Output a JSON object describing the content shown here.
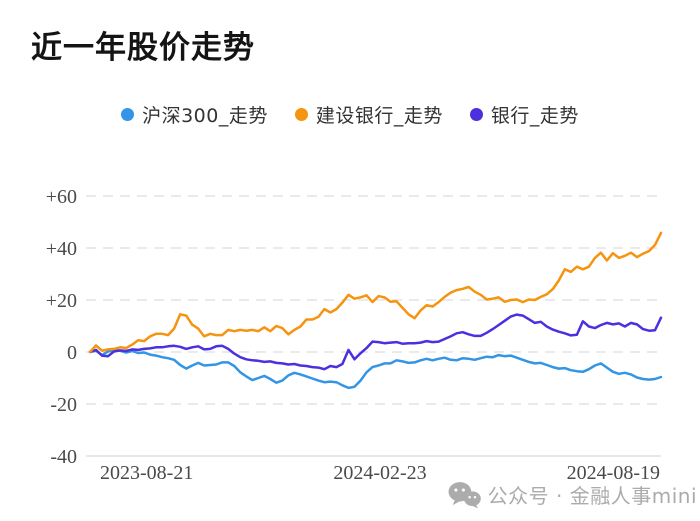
{
  "header": {
    "title": "近一年股价走势"
  },
  "watermark": {
    "icon": "wechat-icon",
    "text": "公众号 · 金融人事mini"
  },
  "theme": {
    "background": "#FFFFFF",
    "grid_line": "#DDDDDD",
    "axis_line": "#DBDBDB",
    "tick_label": "#4A4A4A",
    "title_color": "#141414",
    "legend_text": "#333333",
    "watermark_color": "#ABABAB"
  },
  "chart_data": {
    "type": "line",
    "title": "近一年股价走势",
    "unit": "percent_change",
    "legend_position": "top-center",
    "grid": "horizontal-dashed",
    "x_axis": {
      "type": "time",
      "tick_labels": [
        "2023-08-21",
        "2024-02-23",
        "2024-08-19"
      ],
      "range": [
        "2023-08-21",
        "2024-08-19"
      ]
    },
    "y_axis": {
      "tick_labels": [
        "+60",
        "+40",
        "+20",
        "0",
        "-20",
        "-40"
      ],
      "tick_values": [
        60,
        40,
        20,
        0,
        -20,
        -40
      ],
      "min": -40,
      "max": 60
    },
    "series": [
      {
        "name": "沪深300_走势",
        "color": "#3295E5",
        "values": [
          0,
          0.5,
          -1.2,
          0.2,
          0.8,
          0.5,
          -0.2,
          0.4,
          -0.4,
          -0.2,
          -1,
          -1.4,
          -2,
          -2.4,
          -3,
          -5,
          -6.4,
          -5.2,
          -4.2,
          -5.2,
          -5,
          -4.8,
          -4,
          -4,
          -5.4,
          -7.8,
          -9.4,
          -10.8,
          -10,
          -9.2,
          -10.4,
          -11.8,
          -11,
          -9,
          -8,
          -8.6,
          -9.4,
          -10.2,
          -11,
          -11.6,
          -11.4,
          -11.6,
          -12.8,
          -13.8,
          -13.4,
          -11,
          -7.8,
          -5.8,
          -5.2,
          -4.4,
          -4.4,
          -3.2,
          -3.6,
          -4.2,
          -4,
          -3.2,
          -2.6,
          -3.2,
          -2.6,
          -2.2,
          -3,
          -3.2,
          -2.4,
          -2.6,
          -3,
          -2.4,
          -1.8,
          -2,
          -1.2,
          -1.6,
          -1.4,
          -2.2,
          -3,
          -3.8,
          -4.4,
          -4.2,
          -5,
          -5.8,
          -6.4,
          -6.2,
          -7,
          -7.4,
          -7.6,
          -6.6,
          -5.2,
          -4.4,
          -6,
          -7.6,
          -8.4,
          -8,
          -8.6,
          -9.8,
          -10.4,
          -10.6,
          -10.4,
          -9.6
        ]
      },
      {
        "name": "建设银行_走势",
        "color": "#F6930F",
        "values": [
          0,
          2.5,
          0.5,
          1,
          1.2,
          1.8,
          1.5,
          2.8,
          4.5,
          4.2,
          6,
          7,
          7,
          6.5,
          9,
          14.5,
          14,
          10.5,
          9,
          6,
          7,
          6.5,
          6.5,
          8.5,
          8,
          8.5,
          8.2,
          8.5,
          8,
          9.5,
          8,
          10,
          9.2,
          6.8,
          8.5,
          9.8,
          12.5,
          12.5,
          13.5,
          16.5,
          15.2,
          16.5,
          19,
          22,
          20.5,
          21,
          21.8,
          19.2,
          21.5,
          21,
          19.3,
          19.5,
          17,
          14.5,
          13,
          16,
          18,
          17.5,
          19.2,
          21.2,
          22.8,
          23.8,
          24.3,
          25,
          23.2,
          22,
          20.2,
          20.5,
          21,
          19.3,
          20,
          20.2,
          19.2,
          20.2,
          20,
          21.2,
          22.2,
          24.2,
          27.5,
          31.8,
          30.8,
          32.8,
          31.8,
          32.8,
          36.2,
          38.2,
          35.2,
          38,
          36.2,
          37,
          38.2,
          36.5,
          37.8,
          38.8,
          41.2,
          45.8
        ]
      },
      {
        "name": "银行_走势",
        "color": "#4A30DE",
        "values": [
          0,
          0.8,
          -1.4,
          -1.6,
          0.2,
          0.6,
          0.4,
          1,
          0.8,
          1.2,
          1.4,
          1.8,
          1.8,
          2.2,
          2.4,
          2,
          1.2,
          1.8,
          2.2,
          1,
          1.2,
          2.2,
          2.4,
          1.2,
          -0.6,
          -2,
          -2.8,
          -3.2,
          -3.4,
          -3.8,
          -3.6,
          -4.2,
          -4.4,
          -4.8,
          -4.6,
          -5.2,
          -5.4,
          -5.8,
          -6,
          -6.6,
          -5.4,
          -5.8,
          -4.6,
          0.8,
          -2.8,
          -0.5,
          1.5,
          4,
          3.8,
          3.4,
          3.6,
          3.8,
          3.2,
          3.4,
          3.4,
          3.6,
          4.2,
          3.8,
          4,
          5,
          6,
          7.2,
          7.6,
          6.8,
          6.2,
          6.2,
          7.4,
          8.8,
          10.4,
          12,
          13.6,
          14.4,
          14,
          12.6,
          11.2,
          11.6,
          9.8,
          8.6,
          7.8,
          7.2,
          6.4,
          6.6,
          11.8,
          9.8,
          9.2,
          10.4,
          11.2,
          10.6,
          11,
          9.8,
          11.2,
          10.6,
          8.8,
          8.2,
          8.4,
          13.2
        ]
      }
    ]
  }
}
